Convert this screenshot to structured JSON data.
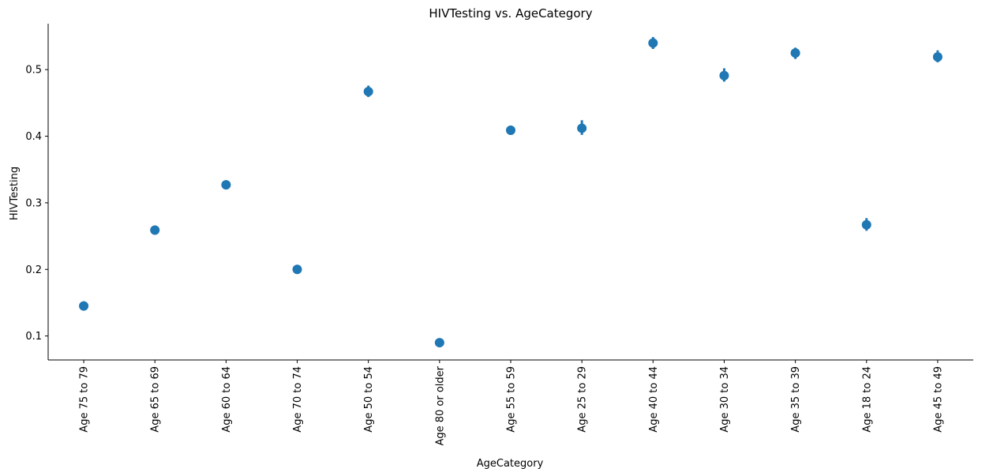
{
  "chart_data": {
    "type": "scatter",
    "title": "HIVTesting vs. AgeCategory",
    "xlabel": "AgeCategory",
    "ylabel": "HIVTesting",
    "categories": [
      "Age 75 to 79",
      "Age 65 to 69",
      "Age 60 to 64",
      "Age 70 to 74",
      "Age 50 to 54",
      "Age 80 or older",
      "Age 55 to 59",
      "Age 25 to 29",
      "Age 40 to 44",
      "Age 30 to 34",
      "Age 35 to 39",
      "Age 18 to 24",
      "Age 45 to 49"
    ],
    "values": [
      0.145,
      0.259,
      0.327,
      0.2,
      0.467,
      0.09,
      0.409,
      0.412,
      0.54,
      0.491,
      0.525,
      0.267,
      0.519
    ],
    "ci_low": [
      0.14,
      0.255,
      0.323,
      0.196,
      0.459,
      0.087,
      0.402,
      0.402,
      0.531,
      0.482,
      0.516,
      0.258,
      0.511
    ],
    "ci_high": [
      0.152,
      0.264,
      0.331,
      0.205,
      0.476,
      0.094,
      0.416,
      0.424,
      0.549,
      0.502,
      0.533,
      0.277,
      0.529
    ],
    "yticks": [
      0.1,
      0.2,
      0.3,
      0.4,
      0.5
    ],
    "ylim": [
      0.064,
      0.569
    ],
    "grid": false,
    "color": "#1f77b4"
  }
}
